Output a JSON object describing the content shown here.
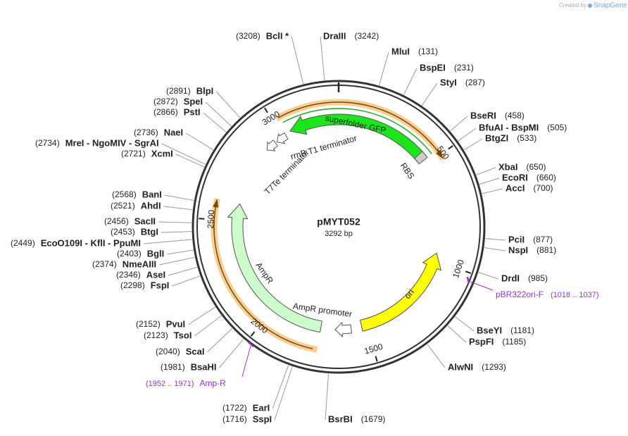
{
  "title": "pMYT052",
  "length": "3292 bp",
  "credit": {
    "prefix": "Created by",
    "brand": "SnapGene"
  },
  "enzymes": [
    {
      "name": "BclI *",
      "position": "(3208)"
    },
    {
      "name": "DraIII",
      "position": "(3242)"
    },
    {
      "name": "MluI",
      "position": "(131)"
    },
    {
      "name": "BspEI",
      "position": "(231)"
    },
    {
      "name": "StyI",
      "position": "(287)"
    },
    {
      "name": "BseRI",
      "position": "(458)"
    },
    {
      "name": "BfuAI - BspMI",
      "position": "(505)"
    },
    {
      "name": "BtgZI",
      "position": "(533)"
    },
    {
      "name": "XbaI",
      "position": "(650)"
    },
    {
      "name": "EcoRI",
      "position": "(660)"
    },
    {
      "name": "AccI",
      "position": "(700)"
    },
    {
      "name": "PciI",
      "position": "(877)"
    },
    {
      "name": "NspI",
      "position": "(881)"
    },
    {
      "name": "DrdI",
      "position": "(985)"
    },
    {
      "name": "BseYI",
      "position": "(1181)"
    },
    {
      "name": "PspFI",
      "position": "(1185)"
    },
    {
      "name": "AlwNI",
      "position": "(1293)"
    },
    {
      "name": "BsrBI",
      "position": "(1679)"
    },
    {
      "name": "SspI",
      "position": "(1716)"
    },
    {
      "name": "EarI",
      "position": "(1722)"
    },
    {
      "name": "BsaHI",
      "position": "(1981)"
    },
    {
      "name": "ScaI",
      "position": "(2040)"
    },
    {
      "name": "TsoI",
      "position": "(2123)"
    },
    {
      "name": "PvuI",
      "position": "(2152)"
    },
    {
      "name": "FspI",
      "position": "(2298)"
    },
    {
      "name": "AseI",
      "position": "(2346)"
    },
    {
      "name": "NmeAIII",
      "position": "(2374)"
    },
    {
      "name": "BglI",
      "position": "(2403)"
    },
    {
      "name": "EcoO109I - KflI - PpuMI",
      "position": "(2449)"
    },
    {
      "name": "BtgI",
      "position": "(2453)"
    },
    {
      "name": "SacII",
      "position": "(2456)"
    },
    {
      "name": "AhdI",
      "position": "(2521)"
    },
    {
      "name": "BanI",
      "position": "(2568)"
    },
    {
      "name": "XcmI",
      "position": "(2721)"
    },
    {
      "name": "MreI - NgoMIV - SgrAI",
      "position": "(2734)"
    },
    {
      "name": "NaeI",
      "position": "(2736)"
    },
    {
      "name": "PstI",
      "position": "(2866)"
    },
    {
      "name": "SpeI",
      "position": "(2872)"
    },
    {
      "name": "BlpI",
      "position": "(2891)"
    }
  ],
  "ticks": [
    500,
    1000,
    1500,
    2000,
    2500,
    3000
  ],
  "features": [
    {
      "label": "superfolder GFP"
    },
    {
      "label": "RBS"
    },
    {
      "label": "rrnB T1 terminator"
    },
    {
      "label": "T7Te terminator"
    },
    {
      "label": "AmpR"
    },
    {
      "label": "AmpR promoter"
    },
    {
      "label": "ori"
    }
  ],
  "primers": [
    {
      "name": "pBR322ori-F",
      "range": "(1018 .. 1037)"
    },
    {
      "name": "Amp-R",
      "range": "(1952 .. 1971)"
    }
  ]
}
